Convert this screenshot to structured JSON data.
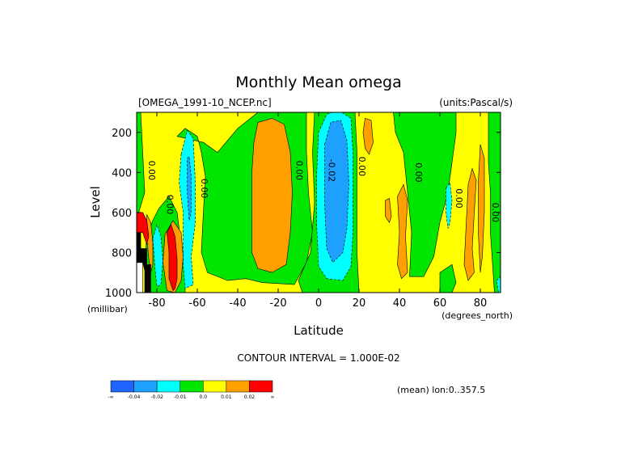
{
  "chart_data": {
    "type": "heatmap",
    "title": "Monthly Mean omega",
    "file_label": "[OMEGA_1991-10_NCEP.nc]",
    "units_label": "(units:Pascal/s)",
    "xlabel": "Latitude",
    "x_units": "(degrees_north)",
    "ylabel": "Level",
    "y_units": "(millibar)",
    "xlim": [
      -90,
      90
    ],
    "ylim": [
      1000,
      100
    ],
    "x_ticks": [
      -80,
      -60,
      -40,
      -20,
      0,
      20,
      40,
      60,
      80
    ],
    "y_ticks": [
      200,
      400,
      600,
      800,
      1000
    ],
    "contour_interval_label": "CONTOUR INTERVAL = 1.000E-02",
    "mean_label": "(mean) lon:0..357.5",
    "colorbar": {
      "labels": [
        "-∞",
        "-0.04",
        "-0.02",
        "-0.01",
        "0.0",
        "0.01",
        "0.02",
        "∞"
      ],
      "colors": [
        "#1e64ff",
        "#1ea0ff",
        "#00ffff",
        "#00e600",
        "#ffff00",
        "#ffa000",
        "#ff0000"
      ]
    },
    "background_value_color": "#ffff00",
    "regions": [
      {
        "name": "green",
        "color": "#00e600",
        "points": [
          [
            -90,
            100
          ],
          [
            -88,
            100
          ],
          [
            -87,
            300
          ],
          [
            -86,
            500
          ],
          [
            -89,
            600
          ],
          [
            -90,
            600
          ]
        ]
      },
      {
        "name": "green",
        "color": "#00e600",
        "points": [
          [
            -82,
            640
          ],
          [
            -79,
            580
          ],
          [
            -74,
            520
          ],
          [
            -70,
            600
          ],
          [
            -68,
            760
          ],
          [
            -66,
            880
          ],
          [
            -66,
            1000
          ],
          [
            -85,
            1000
          ],
          [
            -86,
            850
          ],
          [
            -85,
            720
          ]
        ]
      },
      {
        "name": "green",
        "color": "#00e600",
        "points": [
          [
            -70,
            220
          ],
          [
            -66,
            180
          ],
          [
            -60,
            220
          ],
          [
            -58,
            300
          ],
          [
            -56,
            420
          ],
          [
            -57,
            600
          ],
          [
            -58,
            800
          ],
          [
            -55,
            900
          ],
          [
            -45,
            940
          ],
          [
            -36,
            930
          ],
          [
            -28,
            950
          ],
          [
            -12,
            960
          ],
          [
            -6,
            850
          ],
          [
            -3,
            700
          ],
          [
            -5,
            500
          ],
          [
            -6,
            300
          ],
          [
            -6,
            100
          ],
          [
            -30,
            100
          ],
          [
            -40,
            180
          ],
          [
            -50,
            300
          ],
          [
            -57,
            250
          ]
        ]
      },
      {
        "name": "green",
        "color": "#00e600",
        "points": [
          [
            -2,
            100
          ],
          [
            18,
            100
          ],
          [
            19,
            300
          ],
          [
            19,
            600
          ],
          [
            19,
            800
          ],
          [
            20,
            1000
          ],
          [
            -8,
            1000
          ],
          [
            -10,
            940
          ],
          [
            -4,
            800
          ],
          [
            -2,
            550
          ],
          [
            -3,
            300
          ]
        ]
      },
      {
        "name": "green",
        "color": "#00e600",
        "points": [
          [
            37,
            100
          ],
          [
            68,
            100
          ],
          [
            68,
            200
          ],
          [
            66,
            350
          ],
          [
            64,
            500
          ],
          [
            60,
            650
          ],
          [
            57,
            820
          ],
          [
            52,
            920
          ],
          [
            45,
            920
          ],
          [
            46,
            700
          ],
          [
            44,
            500
          ],
          [
            42,
            300
          ],
          [
            38,
            200
          ]
        ]
      },
      {
        "name": "green",
        "color": "#00e600",
        "points": [
          [
            84,
            100
          ],
          [
            90,
            100
          ],
          [
            90,
            1000
          ],
          [
            87,
            1000
          ],
          [
            86,
            850
          ],
          [
            85,
            700
          ],
          [
            85,
            500
          ],
          [
            84,
            350
          ]
        ]
      },
      {
        "name": "green",
        "color": "#00e600",
        "points": [
          [
            60,
            900
          ],
          [
            66,
            860
          ],
          [
            68,
            950
          ],
          [
            66,
            1000
          ],
          [
            60,
            1000
          ]
        ]
      },
      {
        "name": "orange",
        "color": "#ffa000",
        "points": [
          [
            -30,
            150
          ],
          [
            -23,
            130
          ],
          [
            -17,
            160
          ],
          [
            -14,
            300
          ],
          [
            -13,
            500
          ],
          [
            -14,
            700
          ],
          [
            -16,
            860
          ],
          [
            -23,
            900
          ],
          [
            -30,
            880
          ],
          [
            -33,
            800
          ],
          [
            -33,
            600
          ],
          [
            -33,
            400
          ],
          [
            -32,
            250
          ]
        ]
      },
      {
        "name": "orange",
        "color": "#ffa000",
        "points": [
          [
            23,
            130
          ],
          [
            26,
            140
          ],
          [
            27,
            250
          ],
          [
            25,
            310
          ],
          [
            23,
            280
          ],
          [
            22,
            200
          ]
        ]
      },
      {
        "name": "orange",
        "color": "#ffa000",
        "points": [
          [
            33,
            540
          ],
          [
            35,
            530
          ],
          [
            36,
            620
          ],
          [
            35,
            650
          ],
          [
            33,
            620
          ]
        ]
      },
      {
        "name": "orange",
        "color": "#ffa000",
        "points": [
          [
            39,
            520
          ],
          [
            42,
            460
          ],
          [
            44,
            540
          ],
          [
            43,
            720
          ],
          [
            44,
            900
          ],
          [
            41,
            930
          ],
          [
            39,
            860
          ],
          [
            40,
            700
          ]
        ]
      },
      {
        "name": "orange",
        "color": "#ffa000",
        "points": [
          [
            74,
            460
          ],
          [
            76,
            380
          ],
          [
            78,
            440
          ],
          [
            77,
            600
          ],
          [
            76,
            780
          ],
          [
            77,
            900
          ],
          [
            74,
            940
          ],
          [
            72,
            860
          ],
          [
            73,
            660
          ]
        ]
      },
      {
        "name": "orange",
        "color": "#ffa000",
        "points": [
          [
            80,
            260
          ],
          [
            82,
            330
          ],
          [
            82,
            600
          ],
          [
            81,
            820
          ],
          [
            80,
            900
          ],
          [
            79,
            700
          ],
          [
            79,
            450
          ]
        ]
      },
      {
        "name": "orange",
        "color": "#ffa000",
        "points": [
          [
            -85,
            610
          ],
          [
            -83,
            650
          ],
          [
            -82,
            750
          ],
          [
            -82,
            860
          ],
          [
            -83,
            900
          ],
          [
            -84,
            830
          ],
          [
            -85,
            720
          ]
        ]
      },
      {
        "name": "orange",
        "color": "#ffa000",
        "points": [
          [
            -76,
            710
          ],
          [
            -72,
            640
          ],
          [
            -68,
            700
          ],
          [
            -67,
            820
          ],
          [
            -68,
            940
          ],
          [
            -71,
            1000
          ],
          [
            -75,
            990
          ],
          [
            -77,
            850
          ]
        ]
      },
      {
        "name": "cyan",
        "color": "#00ffff",
        "points": [
          [
            -68,
            310
          ],
          [
            -65,
            190
          ],
          [
            -62,
            230
          ],
          [
            -61,
            450
          ],
          [
            -61,
            650
          ],
          [
            -63,
            820
          ],
          [
            -62,
            960
          ],
          [
            -66,
            980
          ],
          [
            -67,
            860
          ],
          [
            -67,
            600
          ],
          [
            -69,
            450
          ]
        ]
      },
      {
        "name": "cyan",
        "color": "#00ffff",
        "points": [
          [
            0,
            200
          ],
          [
            4,
            110
          ],
          [
            10,
            90
          ],
          [
            16,
            130
          ],
          [
            17,
            300
          ],
          [
            17,
            500
          ],
          [
            17,
            700
          ],
          [
            16,
            870
          ],
          [
            12,
            940
          ],
          [
            4,
            930
          ],
          [
            0,
            870
          ],
          [
            -1,
            650
          ],
          [
            -1,
            420
          ]
        ]
      },
      {
        "name": "cyan",
        "color": "#00ffff",
        "points": [
          [
            -82,
            730
          ],
          [
            -80,
            660
          ],
          [
            -78,
            720
          ],
          [
            -77,
            840
          ],
          [
            -78,
            960
          ],
          [
            -80,
            970
          ],
          [
            -81,
            870
          ]
        ]
      },
      {
        "name": "cyan",
        "color": "#00ffff",
        "points": [
          [
            63,
            480
          ],
          [
            65,
            450
          ],
          [
            66,
            540
          ],
          [
            65,
            650
          ],
          [
            64,
            680
          ],
          [
            63,
            600
          ]
        ]
      },
      {
        "name": "cyan",
        "color": "#00ffff",
        "points": [
          [
            88,
            940
          ],
          [
            90,
            920
          ],
          [
            90,
            1000
          ],
          [
            89,
            1000
          ]
        ]
      },
      {
        "name": "blue",
        "color": "#1ea0ff",
        "points": [
          [
            3,
            260
          ],
          [
            6,
            150
          ],
          [
            11,
            140
          ],
          [
            14,
            240
          ],
          [
            15,
            450
          ],
          [
            14,
            680
          ],
          [
            12,
            800
          ],
          [
            7,
            850
          ],
          [
            4,
            780
          ],
          [
            3,
            560
          ]
        ]
      },
      {
        "name": "blue",
        "color": "#1ea0ff",
        "points": [
          [
            -65,
            330
          ],
          [
            -64,
            320
          ],
          [
            -63,
            420
          ],
          [
            -63,
            600
          ],
          [
            -64,
            640
          ],
          [
            -65,
            500
          ]
        ]
      },
      {
        "name": "red",
        "color": "#ff0000",
        "points": [
          [
            -90,
            600
          ],
          [
            -87,
            600
          ],
          [
            -85,
            640
          ],
          [
            -84,
            720
          ],
          [
            -85,
            760
          ],
          [
            -87,
            700
          ],
          [
            -90,
            700
          ]
        ]
      },
      {
        "name": "red",
        "color": "#ff0000",
        "points": [
          [
            -75,
            700
          ],
          [
            -73,
            660
          ],
          [
            -71,
            720
          ],
          [
            -70,
            830
          ],
          [
            -70,
            930
          ],
          [
            -71,
            980
          ],
          [
            -72,
            990
          ],
          [
            -74,
            930
          ],
          [
            -74,
            800
          ]
        ]
      },
      {
        "name": "white",
        "color": "#ffffff",
        "points": [
          [
            -90,
            780
          ],
          [
            -87,
            780
          ],
          [
            -87,
            1000
          ],
          [
            -90,
            1000
          ]
        ]
      },
      {
        "name": "black",
        "color": "#000000",
        "points": [
          [
            -90,
            700
          ],
          [
            -88,
            700
          ],
          [
            -88,
            780
          ],
          [
            -85,
            780
          ],
          [
            -85,
            860
          ],
          [
            -83,
            860
          ],
          [
            -83,
            1000
          ],
          [
            -86,
            1000
          ],
          [
            -86,
            890
          ],
          [
            -87,
            850
          ],
          [
            -90,
            850
          ]
        ]
      }
    ],
    "contour_labels": [
      {
        "text": "0.00",
        "lat": -84,
        "lev": 390
      },
      {
        "text": "0.00",
        "lat": -75,
        "lev": 560
      },
      {
        "text": "0.00",
        "lat": -58,
        "lev": 480
      },
      {
        "text": "0.00",
        "lat": -11,
        "lev": 390
      },
      {
        "text": "-0.02",
        "lat": 5,
        "lev": 390
      },
      {
        "text": "0.00",
        "lat": 20,
        "lev": 370
      },
      {
        "text": "0.00",
        "lat": 48,
        "lev": 400
      },
      {
        "text": "0.00",
        "lat": 68,
        "lev": 530
      },
      {
        "text": "0.00",
        "lat": 86,
        "lev": 600
      }
    ]
  }
}
